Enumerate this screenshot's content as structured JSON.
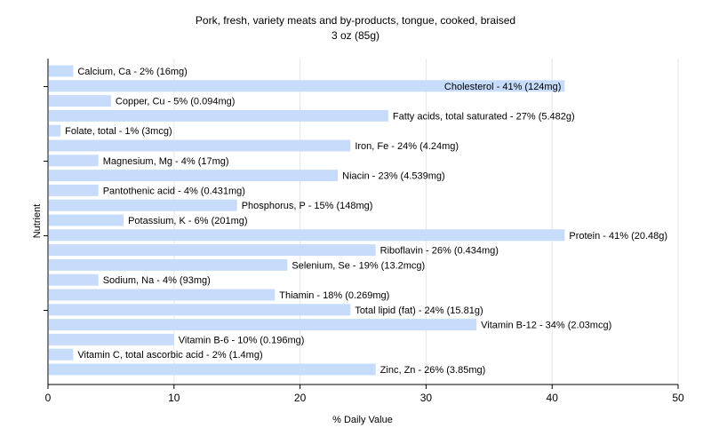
{
  "chart_data": {
    "type": "bar",
    "orientation": "horizontal",
    "title": "Pork, fresh, variety meats and by-products, tongue, cooked, braised",
    "subtitle": "3 oz (85g)",
    "xlabel": "% Daily Value",
    "ylabel": "Nutrient",
    "xlim": [
      0,
      50
    ],
    "xticks": [
      0,
      10,
      20,
      30,
      40,
      50
    ],
    "grid": true,
    "bar_color": "#c6dcfa",
    "categories": [
      "Calcium, Ca",
      "Cholesterol",
      "Copper, Cu",
      "Fatty acids, total saturated",
      "Folate, total",
      "Iron, Fe",
      "Magnesium, Mg",
      "Niacin",
      "Pantothenic acid",
      "Phosphorus, P",
      "Potassium, K",
      "Protein",
      "Riboflavin",
      "Selenium, Se",
      "Sodium, Na",
      "Thiamin",
      "Total lipid (fat)",
      "Vitamin B-12",
      "Vitamin B-6",
      "Vitamin C, total ascorbic acid",
      "Zinc, Zn"
    ],
    "values": [
      2,
      41,
      5,
      27,
      1,
      24,
      4,
      23,
      4,
      15,
      6,
      41,
      26,
      19,
      4,
      18,
      24,
      34,
      10,
      2,
      26
    ],
    "labels": [
      "Calcium, Ca - 2% (16mg)",
      "Cholesterol - 41% (124mg)",
      "Copper, Cu - 5% (0.094mg)",
      "Fatty acids, total saturated - 27% (5.482g)",
      "Folate, total - 1% (3mcg)",
      "Iron, Fe - 24% (4.24mg)",
      "Magnesium, Mg - 4% (17mg)",
      "Niacin - 23% (4.539mg)",
      "Pantothenic acid - 4% (0.431mg)",
      "Phosphorus, P - 15% (148mg)",
      "Potassium, K - 6% (201mg)",
      "Protein - 41% (20.48g)",
      "Riboflavin - 26% (0.434mg)",
      "Selenium, Se - 19% (13.2mcg)",
      "Sodium, Na - 4% (93mg)",
      "Thiamin - 18% (0.269mg)",
      "Total lipid (fat) - 24% (15.81g)",
      "Vitamin B-12 - 34% (2.03mcg)",
      "Vitamin B-6 - 10% (0.196mg)",
      "Vitamin C, total ascorbic acid - 2% (1.4mg)",
      "Zinc, Zn - 26% (3.85mg)"
    ],
    "inside_label_indices": [
      1
    ]
  }
}
